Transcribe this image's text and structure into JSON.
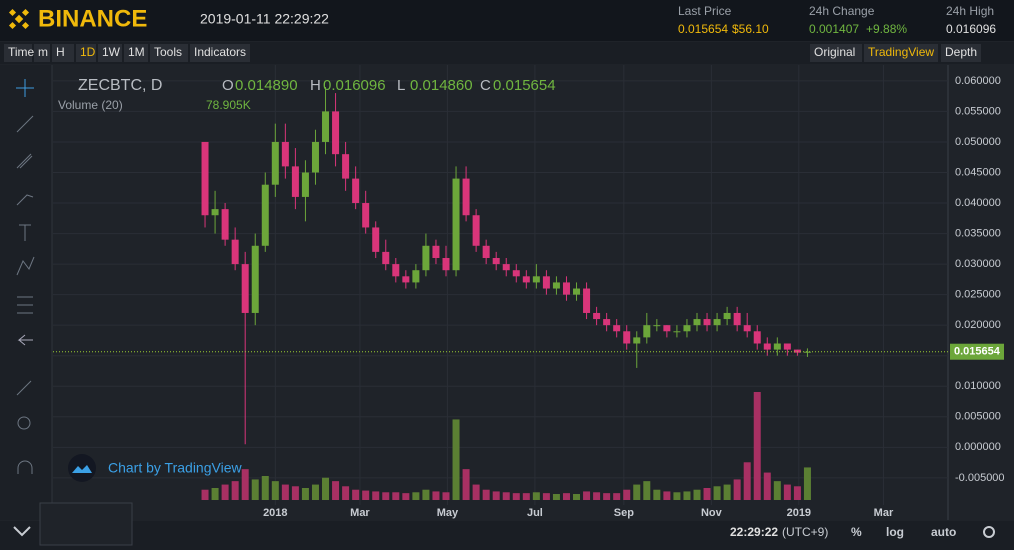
{
  "header": {
    "brand": "BINANCE",
    "datetime": "2019-01-11 22:29:22",
    "stats": [
      {
        "label": "Last Price",
        "value": "0.015654",
        "extra": "$56.10"
      },
      {
        "label": "24h Change",
        "value": "0.001407",
        "extra": "+9.88%"
      },
      {
        "label": "24h High",
        "value": "0.016096"
      }
    ]
  },
  "toolbar": {
    "left": [
      "Time",
      "m",
      "H",
      "1D",
      "1W",
      "1M",
      "Tools",
      "Indicators"
    ],
    "right": [
      "Original",
      "TradingView",
      "Depth"
    ]
  },
  "footer": {
    "time": "22:29:22",
    "zone": "(UTC+9)",
    "buttons": [
      "%",
      "log",
      "auto"
    ]
  },
  "watermark": "Chart by TradingView",
  "chart_data": {
    "type": "candlestick",
    "symbol": "ZECBTC, D",
    "ohlc_legend": [
      {
        "key": "O",
        "value": "0.014890"
      },
      {
        "key": "H",
        "value": "0.016096"
      },
      {
        "key": "L",
        "value": "0.014860"
      },
      {
        "key": "C",
        "value": "0.015654"
      }
    ],
    "volume_legend": {
      "name": "Volume (20)",
      "value": "78.905K"
    },
    "x": [
      -49,
      -42,
      -35,
      -28,
      -21,
      -14,
      -7,
      0,
      7,
      14,
      21,
      28,
      35,
      42,
      49,
      56,
      63,
      70,
      77,
      84,
      91,
      98,
      105,
      112,
      119,
      126,
      133,
      140,
      147,
      154,
      161,
      168,
      175,
      182,
      189,
      196,
      203,
      210,
      217,
      224,
      231,
      238,
      245,
      252,
      259,
      266,
      273,
      280,
      287,
      294,
      301,
      308,
      315,
      322,
      329,
      336,
      343,
      350,
      357,
      364,
      371
    ],
    "open": [
      0.05,
      0.038,
      0.039,
      0.034,
      0.03,
      0.022,
      0.033,
      0.043,
      0.05,
      0.046,
      0.041,
      0.045,
      0.05,
      0.055,
      0.048,
      0.044,
      0.04,
      0.036,
      0.032,
      0.03,
      0.028,
      0.027,
      0.029,
      0.033,
      0.031,
      0.029,
      0.044,
      0.038,
      0.033,
      0.031,
      0.03,
      0.029,
      0.028,
      0.027,
      0.028,
      0.026,
      0.027,
      0.025,
      0.026,
      0.022,
      0.021,
      0.02,
      0.019,
      0.017,
      0.018,
      0.02,
      0.02,
      0.019,
      0.019,
      0.02,
      0.021,
      0.02,
      0.021,
      0.022,
      0.02,
      0.019,
      0.017,
      0.016,
      0.017,
      0.016,
      0.0155
    ],
    "high": [
      0.05,
      0.042,
      0.04,
      0.036,
      0.032,
      0.035,
      0.045,
      0.053,
      0.053,
      0.049,
      0.047,
      0.052,
      0.059,
      0.058,
      0.05,
      0.046,
      0.042,
      0.037,
      0.034,
      0.031,
      0.029,
      0.03,
      0.035,
      0.034,
      0.033,
      0.046,
      0.046,
      0.039,
      0.034,
      0.032,
      0.031,
      0.03,
      0.029,
      0.03,
      0.029,
      0.028,
      0.028,
      0.027,
      0.027,
      0.023,
      0.022,
      0.021,
      0.02,
      0.019,
      0.022,
      0.021,
      0.02,
      0.02,
      0.021,
      0.022,
      0.022,
      0.022,
      0.023,
      0.023,
      0.022,
      0.02,
      0.018,
      0.018,
      0.017,
      0.016,
      0.0162
    ],
    "low": [
      0.036,
      0.035,
      0.033,
      0.029,
      0.0005,
      0.02,
      0.032,
      0.041,
      0.044,
      0.039,
      0.037,
      0.043,
      0.048,
      0.046,
      0.042,
      0.039,
      0.035,
      0.031,
      0.029,
      0.027,
      0.026,
      0.026,
      0.028,
      0.03,
      0.028,
      0.028,
      0.037,
      0.032,
      0.03,
      0.029,
      0.028,
      0.027,
      0.026,
      0.026,
      0.025,
      0.025,
      0.024,
      0.024,
      0.021,
      0.02,
      0.019,
      0.018,
      0.016,
      0.013,
      0.017,
      0.019,
      0.018,
      0.018,
      0.018,
      0.019,
      0.019,
      0.019,
      0.02,
      0.019,
      0.018,
      0.016,
      0.015,
      0.015,
      0.015,
      0.015,
      0.0148
    ],
    "close": [
      0.038,
      0.039,
      0.034,
      0.03,
      0.022,
      0.033,
      0.043,
      0.05,
      0.046,
      0.041,
      0.045,
      0.05,
      0.055,
      0.048,
      0.044,
      0.04,
      0.036,
      0.032,
      0.03,
      0.028,
      0.027,
      0.029,
      0.033,
      0.031,
      0.029,
      0.044,
      0.038,
      0.033,
      0.031,
      0.03,
      0.029,
      0.028,
      0.027,
      0.028,
      0.026,
      0.027,
      0.025,
      0.026,
      0.022,
      0.021,
      0.02,
      0.019,
      0.017,
      0.018,
      0.02,
      0.02,
      0.019,
      0.019,
      0.02,
      0.021,
      0.02,
      0.021,
      0.022,
      0.02,
      0.019,
      0.017,
      0.016,
      0.017,
      0.016,
      0.0155,
      0.015654
    ],
    "volume": [
      60,
      70,
      90,
      110,
      180,
      120,
      140,
      110,
      90,
      80,
      70,
      90,
      130,
      110,
      80,
      60,
      55,
      50,
      45,
      45,
      40,
      45,
      60,
      50,
      45,
      470,
      180,
      90,
      60,
      50,
      45,
      40,
      40,
      45,
      40,
      35,
      40,
      35,
      50,
      45,
      40,
      40,
      60,
      90,
      110,
      60,
      50,
      45,
      50,
      60,
      70,
      80,
      90,
      120,
      220,
      630,
      160,
      110,
      90,
      80,
      190
    ],
    "volume_ylim": [
      0,
      700
    ],
    "colors": {
      "up": "#6ca63a",
      "down": "#d9357a",
      "volume_up": "#5b7f33",
      "volume_down": "#a83063"
    },
    "xlim": [
      -155,
      469
    ],
    "xticks": [
      {
        "value": 0,
        "label": "2018"
      },
      {
        "value": 59,
        "label": "Mar"
      },
      {
        "value": 120,
        "label": "May"
      },
      {
        "value": 181,
        "label": "Jul"
      },
      {
        "value": 243,
        "label": "Sep"
      },
      {
        "value": 304,
        "label": "Nov"
      },
      {
        "value": 365,
        "label": "2019"
      },
      {
        "value": 424,
        "label": "Mar"
      }
    ],
    "ylim": [
      -0.0119,
      0.0626
    ],
    "yticks": [
      {
        "value": 0.06,
        "label": "0.060000"
      },
      {
        "value": 0.055,
        "label": "0.055000"
      },
      {
        "value": 0.05,
        "label": "0.050000"
      },
      {
        "value": 0.045,
        "label": "0.045000"
      },
      {
        "value": 0.04,
        "label": "0.040000"
      },
      {
        "value": 0.035,
        "label": "0.035000"
      },
      {
        "value": 0.03,
        "label": "0.030000"
      },
      {
        "value": 0.025,
        "label": "0.025000"
      },
      {
        "value": 0.02,
        "label": "0.020000"
      },
      {
        "value": 0.015,
        "label": "0.015000"
      },
      {
        "value": 0.01,
        "label": "0.010000"
      },
      {
        "value": 0.005,
        "label": "0.005000"
      },
      {
        "value": 0,
        "label": "0.000000"
      },
      {
        "value": -0.005,
        "label": "-0.005000"
      }
    ],
    "last_price": {
      "value": 0.015654,
      "label": "0.015654"
    },
    "grid": true
  }
}
